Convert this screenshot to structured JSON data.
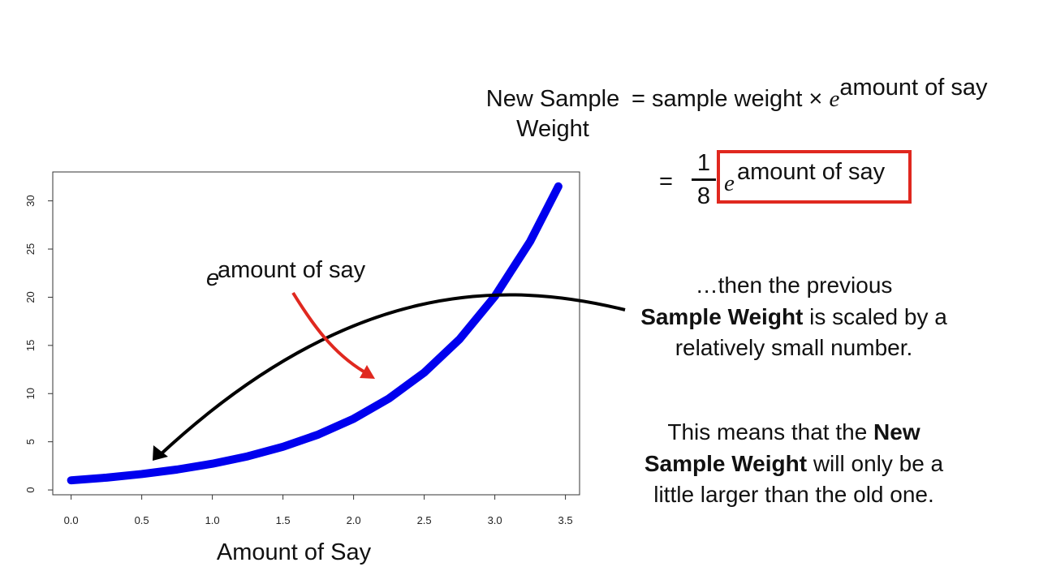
{
  "equation": {
    "lhs_line1": "New Sample",
    "lhs_line2": "Weight",
    "rhs_equals": "=",
    "rhs_text": "sample weight ×",
    "e_symbol": "e",
    "exponent": "amount of say",
    "line2_equals": "=",
    "fraction_numerator": "1",
    "fraction_denominator": "8",
    "line2_e": "e",
    "line2_exponent": "amount of say",
    "box_color": "#e0281f"
  },
  "explanation": {
    "p1_pre": "…then the previous",
    "p1_bold": "Sample Weight",
    "p1_post": "is scaled by a relatively small number.",
    "p2_pre": "This means that the",
    "p2_bold": "New Sample Weight",
    "p2_post": "will only be a little larger than the old one."
  },
  "annotations": {
    "curve_label_e": "e",
    "curve_label_exp": "amount of say",
    "red_arrow_color": "#e0281f",
    "black_arrow_color": "#000000"
  },
  "chart_data": {
    "type": "line",
    "title": "",
    "xlabel": "Amount of Say",
    "ylabel": "",
    "xlim": [
      -0.13,
      3.6
    ],
    "ylim": [
      -0.5,
      33.0
    ],
    "xticks": [
      "0.0",
      "0.5",
      "1.0",
      "1.5",
      "2.0",
      "2.5",
      "3.0",
      "3.5"
    ],
    "xtick_values": [
      0,
      0.5,
      1,
      1.5,
      2,
      2.5,
      3,
      3.5
    ],
    "yticks": [
      "0",
      "5",
      "10",
      "15",
      "20",
      "25",
      "30"
    ],
    "ytick_values": [
      0,
      5,
      10,
      15,
      20,
      25,
      30
    ],
    "grid": false,
    "series": [
      {
        "color": "#0000ee",
        "x": [
          0,
          0.25,
          0.5,
          0.75,
          1,
          1.25,
          1.5,
          1.75,
          2,
          2.25,
          2.5,
          2.75,
          3,
          3.25,
          3.45
        ],
        "values": [
          1.0,
          1.28,
          1.65,
          2.12,
          2.72,
          3.49,
          4.48,
          5.75,
          7.39,
          9.49,
          12.18,
          15.64,
          20.09,
          25.79,
          31.5
        ]
      }
    ]
  }
}
